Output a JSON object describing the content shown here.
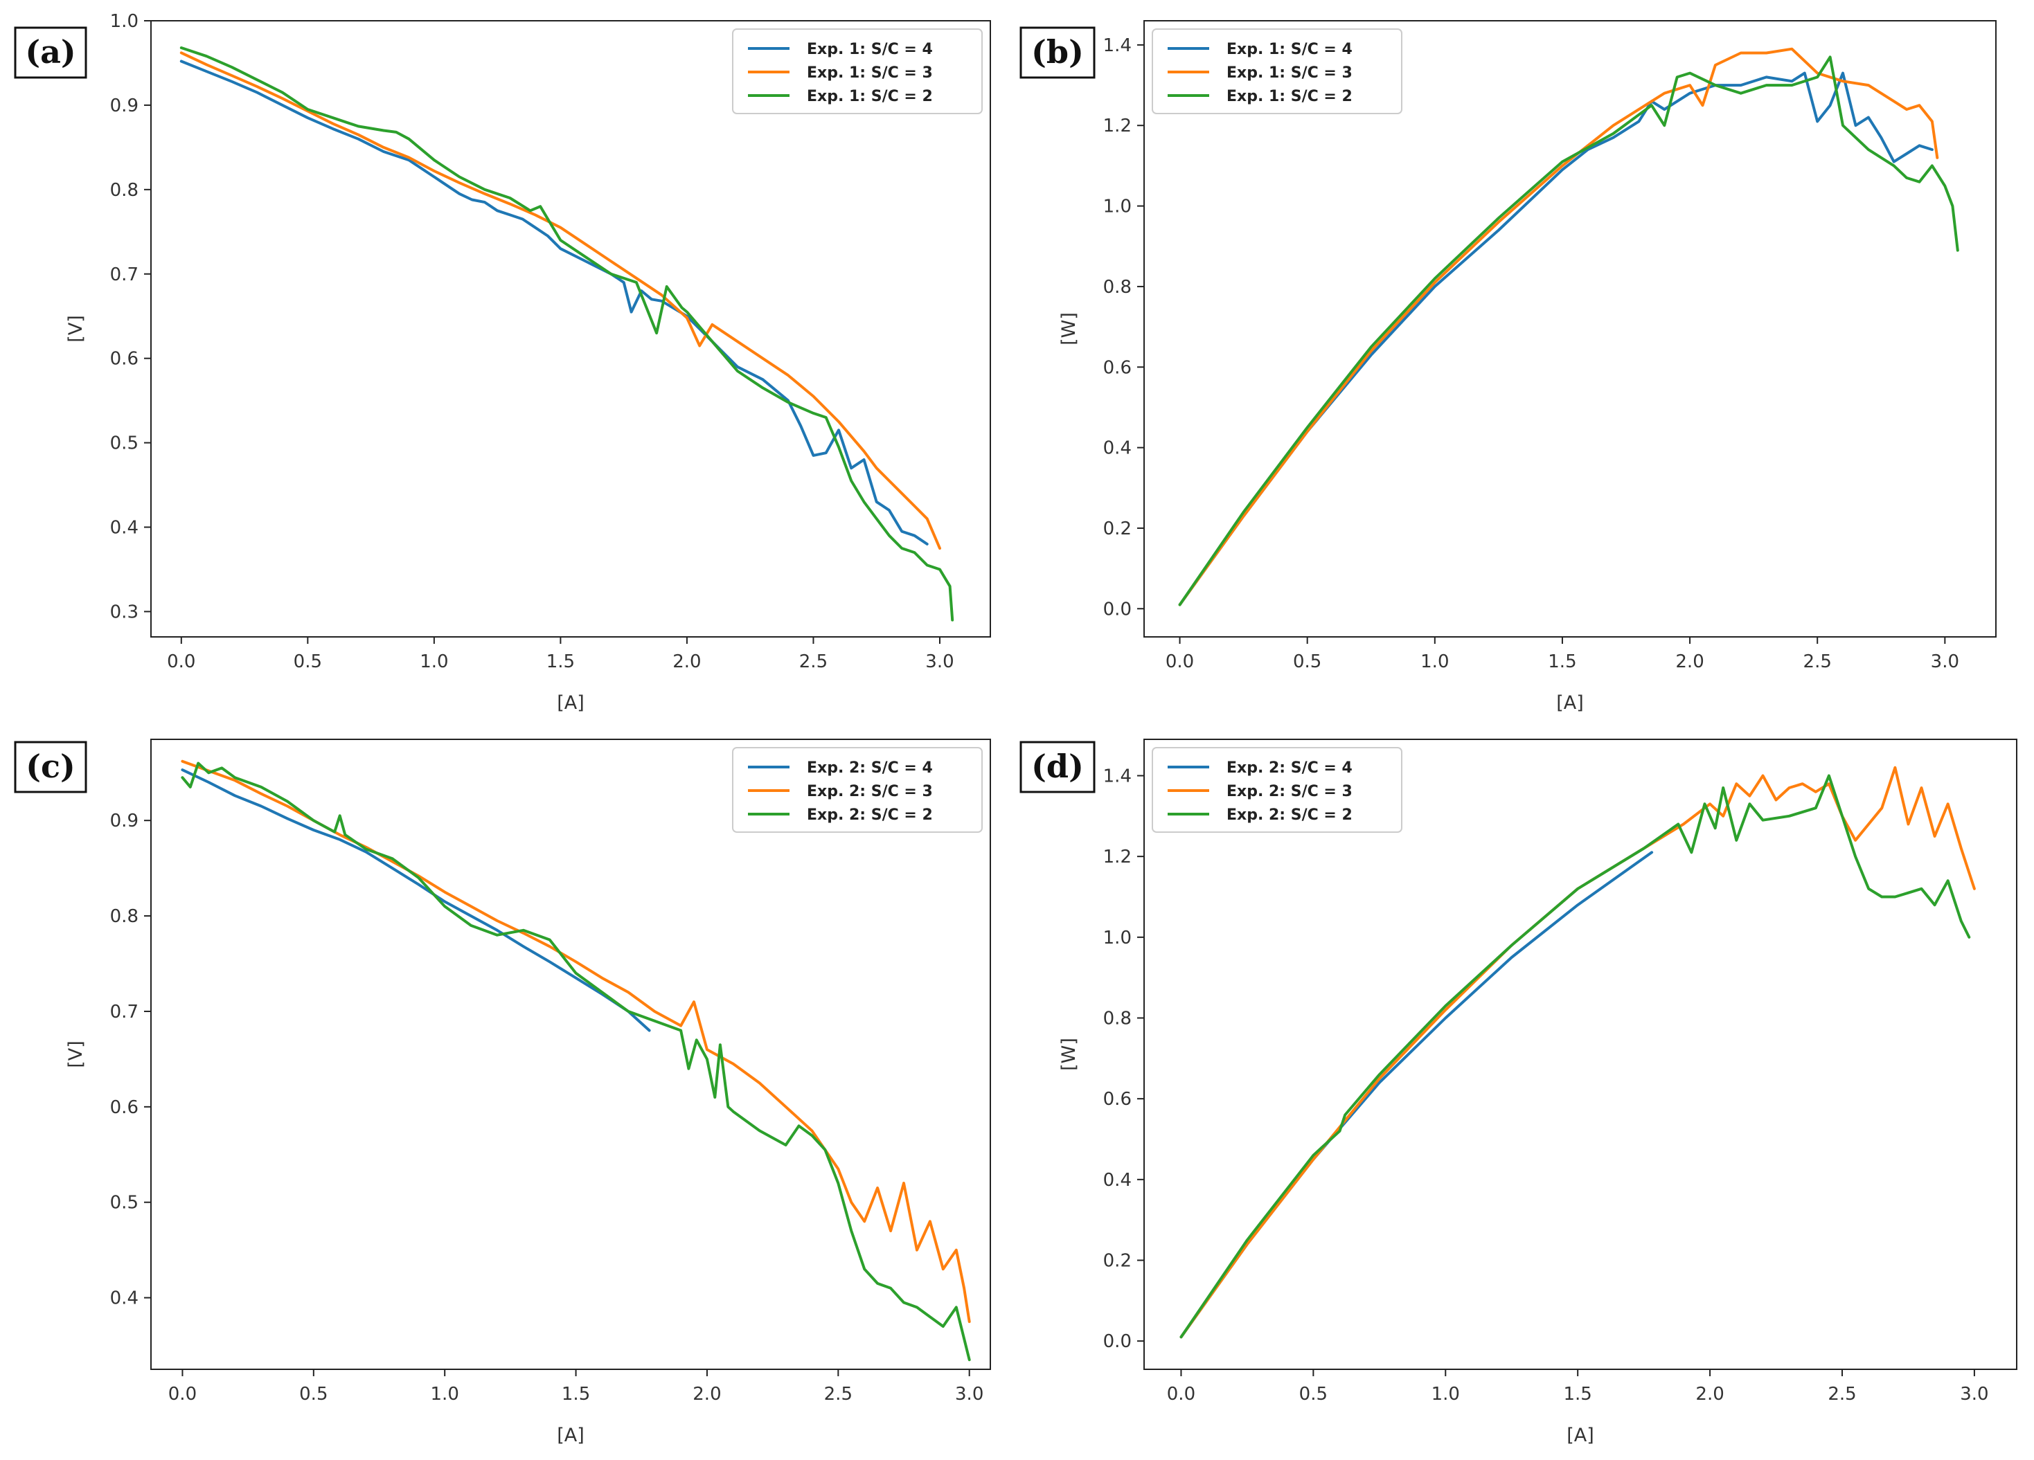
{
  "figure": {
    "colors": {
      "s4": "#1f77b4",
      "s3": "#ff7f0e",
      "s2": "#2ca02c"
    }
  },
  "chart_data": [
    {
      "panel": "(a)",
      "type": "line",
      "xlabel": "[A]",
      "ylabel": "[V]",
      "xlim": [
        -0.12,
        3.2
      ],
      "ylim": [
        0.27,
        1.0
      ],
      "xticks": [
        0.0,
        0.5,
        1.0,
        1.5,
        2.0,
        2.5,
        3.0
      ],
      "xtick_labels": [
        "0.0",
        "0.5",
        "1.0",
        "1.5",
        "2.0",
        "2.5",
        "3.0"
      ],
      "yticks": [
        0.3,
        0.4,
        0.5,
        0.6,
        0.7,
        0.8,
        0.9,
        1.0
      ],
      "ytick_labels": [
        "0.3",
        "0.4",
        "0.5",
        "0.6",
        "0.7",
        "0.8",
        "0.9",
        "1.0"
      ],
      "legend_position": "top-right",
      "series": [
        {
          "name": "Exp. 1:  S/C = 4",
          "color_key": "s4",
          "x": [
            0.0,
            0.1,
            0.2,
            0.3,
            0.4,
            0.5,
            0.6,
            0.7,
            0.8,
            0.9,
            1.0,
            1.1,
            1.15,
            1.2,
            1.25,
            1.3,
            1.35,
            1.4,
            1.45,
            1.5,
            1.6,
            1.7,
            1.75,
            1.78,
            1.82,
            1.86,
            1.9,
            2.0,
            2.1,
            2.2,
            2.3,
            2.4,
            2.45,
            2.5,
            2.55,
            2.6,
            2.65,
            2.7,
            2.75,
            2.8,
            2.85,
            2.9,
            2.95
          ],
          "y": [
            0.952,
            0.94,
            0.928,
            0.915,
            0.9,
            0.885,
            0.872,
            0.86,
            0.845,
            0.835,
            0.815,
            0.795,
            0.788,
            0.785,
            0.775,
            0.77,
            0.765,
            0.755,
            0.745,
            0.73,
            0.715,
            0.7,
            0.69,
            0.655,
            0.68,
            0.67,
            0.668,
            0.65,
            0.62,
            0.59,
            0.575,
            0.55,
            0.52,
            0.485,
            0.488,
            0.515,
            0.47,
            0.48,
            0.43,
            0.42,
            0.395,
            0.39,
            0.38
          ]
        },
        {
          "name": "Exp. 1:  S/C = 3",
          "color_key": "s3",
          "x": [
            0.0,
            0.1,
            0.2,
            0.3,
            0.4,
            0.5,
            0.6,
            0.7,
            0.8,
            0.9,
            1.0,
            1.1,
            1.2,
            1.3,
            1.4,
            1.5,
            1.6,
            1.7,
            1.8,
            1.9,
            2.0,
            2.05,
            2.1,
            2.2,
            2.3,
            2.4,
            2.5,
            2.6,
            2.7,
            2.75,
            2.8,
            2.85,
            2.9,
            2.95,
            3.0
          ],
          "y": [
            0.962,
            0.948,
            0.935,
            0.922,
            0.908,
            0.893,
            0.878,
            0.865,
            0.85,
            0.838,
            0.822,
            0.808,
            0.795,
            0.783,
            0.77,
            0.755,
            0.735,
            0.715,
            0.695,
            0.675,
            0.648,
            0.615,
            0.64,
            0.62,
            0.6,
            0.58,
            0.555,
            0.525,
            0.49,
            0.47,
            0.455,
            0.44,
            0.425,
            0.41,
            0.375
          ]
        },
        {
          "name": "Exp. 1:  S/C = 2",
          "color_key": "s2",
          "x": [
            0.0,
            0.1,
            0.2,
            0.3,
            0.4,
            0.5,
            0.6,
            0.7,
            0.8,
            0.85,
            0.9,
            1.0,
            1.1,
            1.2,
            1.3,
            1.38,
            1.42,
            1.45,
            1.5,
            1.6,
            1.7,
            1.8,
            1.88,
            1.92,
            1.98,
            2.0,
            2.1,
            2.2,
            2.3,
            2.4,
            2.5,
            2.55,
            2.6,
            2.65,
            2.7,
            2.75,
            2.8,
            2.85,
            2.9,
            2.95,
            3.0,
            3.04,
            3.05
          ],
          "y": [
            0.968,
            0.958,
            0.945,
            0.93,
            0.915,
            0.895,
            0.885,
            0.875,
            0.87,
            0.868,
            0.86,
            0.835,
            0.815,
            0.8,
            0.79,
            0.775,
            0.78,
            0.765,
            0.74,
            0.72,
            0.7,
            0.69,
            0.63,
            0.685,
            0.66,
            0.655,
            0.62,
            0.585,
            0.565,
            0.548,
            0.535,
            0.53,
            0.495,
            0.455,
            0.43,
            0.41,
            0.39,
            0.375,
            0.37,
            0.355,
            0.35,
            0.33,
            0.29
          ]
        }
      ]
    },
    {
      "panel": "(b)",
      "type": "line",
      "xlabel": "[A]",
      "ylabel": "[W]",
      "xlim": [
        -0.14,
        3.2
      ],
      "ylim": [
        -0.07,
        1.46
      ],
      "xticks": [
        0.0,
        0.5,
        1.0,
        1.5,
        2.0,
        2.5,
        3.0
      ],
      "xtick_labels": [
        "0.0",
        "0.5",
        "1.0",
        "1.5",
        "2.0",
        "2.5",
        "3.0"
      ],
      "yticks": [
        0.0,
        0.2,
        0.4,
        0.6,
        0.8,
        1.0,
        1.2,
        1.4
      ],
      "ytick_labels": [
        "0.0",
        "0.2",
        "0.4",
        "0.6",
        "0.8",
        "1.0",
        "1.2",
        "1.4"
      ],
      "legend_position": "top-left",
      "series": [
        {
          "name": "Exp. 1:  S/C = 4",
          "color_key": "s4",
          "x": [
            0.0,
            0.25,
            0.5,
            0.75,
            1.0,
            1.25,
            1.5,
            1.6,
            1.7,
            1.8,
            1.85,
            1.9,
            2.0,
            2.1,
            2.2,
            2.3,
            2.4,
            2.45,
            2.5,
            2.55,
            2.6,
            2.65,
            2.7,
            2.75,
            2.8,
            2.85,
            2.9,
            2.95
          ],
          "y": [
            0.01,
            0.23,
            0.44,
            0.63,
            0.8,
            0.94,
            1.09,
            1.14,
            1.17,
            1.21,
            1.26,
            1.24,
            1.28,
            1.3,
            1.3,
            1.32,
            1.31,
            1.33,
            1.21,
            1.25,
            1.33,
            1.2,
            1.22,
            1.17,
            1.11,
            1.13,
            1.15,
            1.14
          ]
        },
        {
          "name": "Exp. 1:  S/C = 3",
          "color_key": "s3",
          "x": [
            0.0,
            0.25,
            0.5,
            0.75,
            1.0,
            1.25,
            1.5,
            1.7,
            1.9,
            2.0,
            2.05,
            2.1,
            2.2,
            2.3,
            2.4,
            2.5,
            2.6,
            2.7,
            2.8,
            2.85,
            2.9,
            2.95,
            2.97
          ],
          "y": [
            0.01,
            0.23,
            0.44,
            0.64,
            0.81,
            0.96,
            1.1,
            1.2,
            1.28,
            1.3,
            1.25,
            1.35,
            1.38,
            1.38,
            1.39,
            1.33,
            1.31,
            1.3,
            1.26,
            1.24,
            1.25,
            1.21,
            1.12
          ]
        },
        {
          "name": "Exp. 1:  S/C = 2",
          "color_key": "s2",
          "x": [
            0.0,
            0.25,
            0.5,
            0.75,
            1.0,
            1.25,
            1.5,
            1.7,
            1.85,
            1.9,
            1.95,
            2.0,
            2.1,
            2.2,
            2.3,
            2.4,
            2.5,
            2.55,
            2.6,
            2.7,
            2.8,
            2.85,
            2.9,
            2.95,
            3.0,
            3.03,
            3.05
          ],
          "y": [
            0.01,
            0.24,
            0.45,
            0.65,
            0.82,
            0.97,
            1.11,
            1.18,
            1.25,
            1.2,
            1.32,
            1.33,
            1.3,
            1.28,
            1.3,
            1.3,
            1.32,
            1.37,
            1.2,
            1.14,
            1.1,
            1.07,
            1.06,
            1.1,
            1.05,
            1.0,
            0.89
          ]
        }
      ]
    },
    {
      "panel": "(c)",
      "type": "line",
      "xlabel": "[A]",
      "ylabel": "[V]",
      "xlim": [
        -0.12,
        3.08
      ],
      "ylim": [
        0.325,
        0.985
      ],
      "xticks": [
        0.0,
        0.5,
        1.0,
        1.5,
        2.0,
        2.5,
        3.0
      ],
      "xtick_labels": [
        "0.0",
        "0.5",
        "1.0",
        "1.5",
        "2.0",
        "2.5",
        "3.0"
      ],
      "yticks": [
        0.4,
        0.5,
        0.6,
        0.7,
        0.8,
        0.9
      ],
      "ytick_labels": [
        "0.4",
        "0.5",
        "0.6",
        "0.7",
        "0.8",
        "0.9"
      ],
      "legend_position": "top-right",
      "series": [
        {
          "name": "Exp. 2:  S/C = 4",
          "color_key": "s4",
          "x": [
            0.0,
            0.1,
            0.2,
            0.3,
            0.4,
            0.5,
            0.6,
            0.7,
            0.8,
            0.9,
            1.0,
            1.1,
            1.2,
            1.3,
            1.4,
            1.5,
            1.6,
            1.7,
            1.78
          ],
          "y": [
            0.953,
            0.94,
            0.926,
            0.915,
            0.902,
            0.89,
            0.88,
            0.867,
            0.85,
            0.833,
            0.815,
            0.8,
            0.785,
            0.768,
            0.752,
            0.735,
            0.718,
            0.7,
            0.68
          ]
        },
        {
          "name": "Exp. 2:  S/C = 3",
          "color_key": "s3",
          "x": [
            0.0,
            0.1,
            0.2,
            0.3,
            0.4,
            0.5,
            0.6,
            0.7,
            0.8,
            0.9,
            1.0,
            1.1,
            1.2,
            1.3,
            1.4,
            1.5,
            1.6,
            1.7,
            1.8,
            1.9,
            1.95,
            2.0,
            2.1,
            2.2,
            2.3,
            2.4,
            2.5,
            2.55,
            2.6,
            2.65,
            2.7,
            2.75,
            2.8,
            2.85,
            2.9,
            2.95,
            2.98,
            3.0
          ],
          "y": [
            0.962,
            0.952,
            0.942,
            0.928,
            0.915,
            0.9,
            0.885,
            0.872,
            0.857,
            0.842,
            0.825,
            0.81,
            0.795,
            0.782,
            0.768,
            0.752,
            0.735,
            0.72,
            0.7,
            0.685,
            0.71,
            0.66,
            0.645,
            0.625,
            0.6,
            0.575,
            0.535,
            0.5,
            0.48,
            0.515,
            0.47,
            0.52,
            0.45,
            0.48,
            0.43,
            0.45,
            0.41,
            0.375
          ]
        },
        {
          "name": "Exp. 2:  S/C = 2",
          "color_key": "s2",
          "x": [
            0.0,
            0.03,
            0.06,
            0.1,
            0.15,
            0.2,
            0.3,
            0.4,
            0.5,
            0.58,
            0.6,
            0.62,
            0.7,
            0.8,
            0.9,
            1.0,
            1.1,
            1.2,
            1.3,
            1.4,
            1.5,
            1.6,
            1.7,
            1.8,
            1.9,
            1.93,
            1.96,
            2.0,
            2.03,
            2.05,
            2.08,
            2.1,
            2.2,
            2.3,
            2.35,
            2.4,
            2.45,
            2.5,
            2.55,
            2.6,
            2.65,
            2.7,
            2.75,
            2.8,
            2.85,
            2.9,
            2.95,
            3.0
          ],
          "y": [
            0.945,
            0.935,
            0.96,
            0.95,
            0.955,
            0.945,
            0.935,
            0.92,
            0.9,
            0.888,
            0.905,
            0.885,
            0.87,
            0.86,
            0.84,
            0.81,
            0.79,
            0.78,
            0.785,
            0.775,
            0.74,
            0.72,
            0.7,
            0.69,
            0.68,
            0.64,
            0.67,
            0.65,
            0.61,
            0.665,
            0.6,
            0.595,
            0.575,
            0.56,
            0.58,
            0.57,
            0.555,
            0.52,
            0.47,
            0.43,
            0.415,
            0.41,
            0.395,
            0.39,
            0.38,
            0.37,
            0.39,
            0.335
          ]
        }
      ]
    },
    {
      "panel": "(d)",
      "type": "line",
      "xlabel": "[A]",
      "ylabel": "[W]",
      "xlim": [
        -0.14,
        3.16
      ],
      "ylim": [
        -0.07,
        1.49
      ],
      "xticks": [
        0.0,
        0.5,
        1.0,
        1.5,
        2.0,
        2.5,
        3.0
      ],
      "xtick_labels": [
        "0.0",
        "0.5",
        "1.0",
        "1.5",
        "2.0",
        "2.5",
        "3.0"
      ],
      "yticks": [
        0.0,
        0.2,
        0.4,
        0.6,
        0.8,
        1.0,
        1.2,
        1.4
      ],
      "ytick_labels": [
        "0.0",
        "0.2",
        "0.4",
        "0.6",
        "0.8",
        "1.0",
        "1.2",
        "1.4"
      ],
      "legend_position": "top-left",
      "series": [
        {
          "name": "Exp. 2:  S/C = 4",
          "color_key": "s4",
          "x": [
            0.0,
            0.25,
            0.5,
            0.75,
            1.0,
            1.25,
            1.5,
            1.78
          ],
          "y": [
            0.01,
            0.24,
            0.45,
            0.64,
            0.8,
            0.95,
            1.08,
            1.21
          ]
        },
        {
          "name": "Exp. 2:  S/C = 3",
          "color_key": "s3",
          "x": [
            0.0,
            0.25,
            0.5,
            0.75,
            1.0,
            1.25,
            1.5,
            1.75,
            1.9,
            2.0,
            2.05,
            2.1,
            2.15,
            2.2,
            2.25,
            2.3,
            2.35,
            2.4,
            2.45,
            2.5,
            2.55,
            2.6,
            2.65,
            2.7,
            2.75,
            2.8,
            2.85,
            2.9,
            2.95,
            3.0
          ],
          "y": [
            0.01,
            0.24,
            0.45,
            0.65,
            0.82,
            0.98,
            1.12,
            1.22,
            1.28,
            1.33,
            1.3,
            1.38,
            1.35,
            1.4,
            1.34,
            1.37,
            1.38,
            1.36,
            1.38,
            1.3,
            1.24,
            1.28,
            1.32,
            1.42,
            1.28,
            1.37,
            1.25,
            1.33,
            1.22,
            1.12
          ]
        },
        {
          "name": "Exp. 2:  S/C = 2",
          "color_key": "s2",
          "x": [
            0.0,
            0.25,
            0.5,
            0.6,
            0.62,
            0.75,
            1.0,
            1.25,
            1.5,
            1.75,
            1.88,
            1.93,
            1.98,
            2.02,
            2.05,
            2.1,
            2.15,
            2.2,
            2.3,
            2.4,
            2.45,
            2.5,
            2.55,
            2.6,
            2.65,
            2.7,
            2.75,
            2.8,
            2.85,
            2.9,
            2.95,
            2.98
          ],
          "y": [
            0.01,
            0.25,
            0.46,
            0.52,
            0.56,
            0.66,
            0.83,
            0.98,
            1.12,
            1.22,
            1.28,
            1.21,
            1.33,
            1.27,
            1.37,
            1.24,
            1.33,
            1.29,
            1.3,
            1.32,
            1.4,
            1.3,
            1.2,
            1.12,
            1.1,
            1.1,
            1.11,
            1.12,
            1.08,
            1.14,
            1.04,
            1.0
          ]
        }
      ]
    }
  ]
}
